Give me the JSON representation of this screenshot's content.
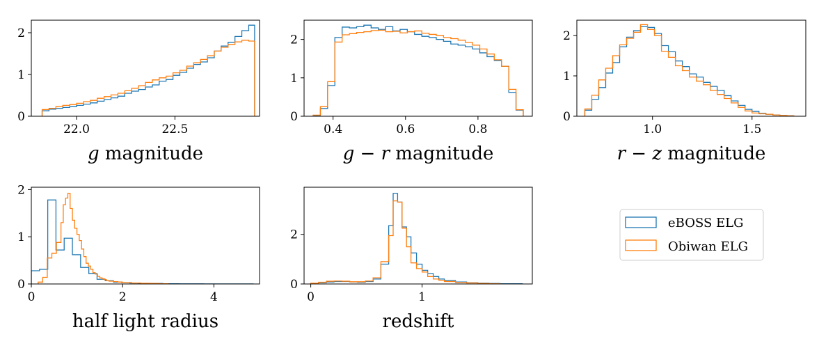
{
  "colors": {
    "eboss": "#1f77b4",
    "obiwan": "#ff7f0e"
  },
  "legend": {
    "entries": [
      "eBOSS ELG",
      "Obiwan ELG"
    ]
  },
  "chart_data": [
    {
      "id": "g-mag",
      "type": "step-histogram",
      "xlabel_parts": [
        {
          "text": "g",
          "italic": true
        },
        {
          "text": " magnitude",
          "italic": false
        }
      ],
      "xlim": [
        21.77,
        22.93
      ],
      "ylim": [
        0,
        2.3
      ],
      "xticks": [
        22.0,
        22.5
      ],
      "xtick_labels": [
        "22.0",
        "22.5"
      ],
      "yticks": [
        0,
        1,
        2
      ],
      "ytick_labels": [
        "0",
        "1",
        "2"
      ],
      "series": [
        {
          "name": "eBOSS ELG",
          "edges": [
            21.825,
            21.86,
            21.895,
            21.93,
            21.965,
            22.0,
            22.035,
            22.07,
            22.105,
            22.14,
            22.175,
            22.21,
            22.245,
            22.28,
            22.315,
            22.35,
            22.385,
            22.42,
            22.455,
            22.49,
            22.525,
            22.56,
            22.595,
            22.63,
            22.665,
            22.7,
            22.735,
            22.77,
            22.805,
            22.84,
            22.875,
            22.905
          ],
          "values": [
            0.13,
            0.17,
            0.19,
            0.21,
            0.23,
            0.26,
            0.29,
            0.32,
            0.36,
            0.4,
            0.44,
            0.48,
            0.55,
            0.6,
            0.64,
            0.7,
            0.75,
            0.84,
            0.88,
            0.98,
            1.05,
            1.15,
            1.24,
            1.3,
            1.4,
            1.56,
            1.68,
            1.77,
            1.91,
            2.05,
            2.18
          ],
          "drop": 0
        },
        {
          "name": "Obiwan ELG",
          "edges": [
            21.825,
            21.86,
            21.895,
            21.93,
            21.965,
            22.0,
            22.035,
            22.07,
            22.105,
            22.14,
            22.175,
            22.21,
            22.245,
            22.28,
            22.315,
            22.35,
            22.385,
            22.42,
            22.455,
            22.49,
            22.525,
            22.56,
            22.595,
            22.63,
            22.665,
            22.7,
            22.735,
            22.77,
            22.805,
            22.84,
            22.875,
            22.905
          ],
          "values": [
            0.16,
            0.19,
            0.23,
            0.26,
            0.28,
            0.31,
            0.35,
            0.38,
            0.43,
            0.47,
            0.51,
            0.55,
            0.61,
            0.67,
            0.73,
            0.81,
            0.87,
            0.92,
            0.96,
            1.04,
            1.1,
            1.2,
            1.28,
            1.36,
            1.45,
            1.56,
            1.65,
            1.72,
            1.78,
            1.82,
            1.8
          ],
          "drop": 0
        }
      ]
    },
    {
      "id": "g-r",
      "type": "step-histogram",
      "xlabel_parts": [
        {
          "text": "g",
          "italic": true
        },
        {
          "text": " − ",
          "italic": false
        },
        {
          "text": "r",
          "italic": true
        },
        {
          "text": " magnitude",
          "italic": false
        }
      ],
      "xlim": [
        0.32,
        0.95
      ],
      "ylim": [
        0,
        2.5
      ],
      "xticks": [
        0.4,
        0.6,
        0.8
      ],
      "xtick_labels": [
        "0.4",
        "0.6",
        "0.8"
      ],
      "yticks": [
        0,
        1,
        2
      ],
      "ytick_labels": [
        "0",
        "1",
        "2"
      ],
      "series": [
        {
          "name": "eBOSS ELG",
          "edges": [
            0.345,
            0.365,
            0.385,
            0.405,
            0.425,
            0.445,
            0.465,
            0.485,
            0.505,
            0.525,
            0.545,
            0.565,
            0.585,
            0.605,
            0.625,
            0.645,
            0.665,
            0.685,
            0.705,
            0.725,
            0.745,
            0.765,
            0.785,
            0.805,
            0.825,
            0.845,
            0.865,
            0.885,
            0.905,
            0.925
          ],
          "values": [
            0.02,
            0.2,
            0.8,
            2.05,
            2.32,
            2.3,
            2.33,
            2.37,
            2.3,
            2.26,
            2.33,
            2.22,
            2.26,
            2.2,
            2.13,
            2.08,
            2.05,
            2.0,
            1.95,
            1.88,
            1.85,
            1.81,
            1.75,
            1.65,
            1.55,
            1.45,
            1.3,
            0.62,
            0.16
          ],
          "drop": 0
        },
        {
          "name": "Obiwan ELG",
          "edges": [
            0.345,
            0.365,
            0.385,
            0.405,
            0.425,
            0.445,
            0.465,
            0.485,
            0.505,
            0.525,
            0.545,
            0.565,
            0.585,
            0.605,
            0.625,
            0.645,
            0.665,
            0.685,
            0.705,
            0.725,
            0.745,
            0.765,
            0.785,
            0.805,
            0.825,
            0.845,
            0.865,
            0.885,
            0.905,
            0.925
          ],
          "values": [
            0.03,
            0.25,
            0.9,
            1.93,
            2.12,
            2.15,
            2.18,
            2.2,
            2.23,
            2.24,
            2.2,
            2.21,
            2.17,
            2.2,
            2.22,
            2.16,
            2.13,
            2.1,
            2.05,
            2.02,
            1.98,
            1.92,
            1.85,
            1.75,
            1.62,
            1.47,
            1.3,
            0.7,
            0.17
          ],
          "drop": 0
        }
      ]
    },
    {
      "id": "r-z",
      "type": "step-histogram",
      "xlabel_parts": [
        {
          "text": "r",
          "italic": true
        },
        {
          "text": " − ",
          "italic": false
        },
        {
          "text": "z",
          "italic": true
        },
        {
          "text": " magnitude",
          "italic": false
        }
      ],
      "xlim": [
        0.62,
        1.77
      ],
      "ylim": [
        0,
        2.38
      ],
      "xticks": [
        1.0,
        1.5
      ],
      "xtick_labels": [
        "1.0",
        "1.5"
      ],
      "yticks": [
        0,
        1,
        2
      ],
      "ytick_labels": [
        "0",
        "1",
        "2"
      ],
      "series": [
        {
          "name": "eBOSS ELG",
          "edges": [
            0.66,
            0.695,
            0.73,
            0.765,
            0.8,
            0.835,
            0.87,
            0.905,
            0.94,
            0.975,
            1.01,
            1.045,
            1.08,
            1.115,
            1.15,
            1.185,
            1.22,
            1.255,
            1.29,
            1.325,
            1.36,
            1.395,
            1.43,
            1.465,
            1.5,
            1.535,
            1.57,
            1.605,
            1.64,
            1.675,
            1.71
          ],
          "values": [
            0.15,
            0.42,
            0.71,
            1.07,
            1.33,
            1.72,
            1.96,
            2.12,
            2.22,
            2.2,
            2.05,
            1.75,
            1.6,
            1.37,
            1.23,
            1.05,
            0.97,
            0.84,
            0.74,
            0.64,
            0.51,
            0.38,
            0.27,
            0.17,
            0.12,
            0.07,
            0.05,
            0.03,
            0.02,
            0.01
          ],
          "drop": 0
        },
        {
          "name": "Obiwan ELG",
          "edges": [
            0.66,
            0.695,
            0.73,
            0.765,
            0.8,
            0.835,
            0.87,
            0.905,
            0.94,
            0.975,
            1.01,
            1.045,
            1.08,
            1.115,
            1.15,
            1.185,
            1.22,
            1.255,
            1.29,
            1.325,
            1.36,
            1.395,
            1.43,
            1.465,
            1.5,
            1.535,
            1.57,
            1.605,
            1.64,
            1.675,
            1.71
          ],
          "values": [
            0.18,
            0.52,
            0.9,
            1.19,
            1.5,
            1.77,
            1.93,
            2.08,
            2.27,
            2.15,
            2.0,
            1.61,
            1.46,
            1.25,
            1.13,
            0.97,
            0.87,
            0.78,
            0.64,
            0.54,
            0.44,
            0.33,
            0.22,
            0.13,
            0.08,
            0.06,
            0.05,
            0.03,
            0.02,
            0.01
          ],
          "drop": 0
        }
      ]
    },
    {
      "id": "half-light",
      "type": "step-histogram",
      "xlabel_parts": [
        {
          "text": "half light radius",
          "italic": false
        }
      ],
      "xlim": [
        0,
        5.0
      ],
      "ylim": [
        0,
        2.05
      ],
      "xticks": [
        0,
        2,
        4
      ],
      "xtick_labels": [
        "0",
        "2",
        "4"
      ],
      "yticks": [
        0,
        1,
        2
      ],
      "ytick_labels": [
        "0",
        "1",
        "2"
      ],
      "series": [
        {
          "name": "eBOSS ELG",
          "edges": [
            0,
            0.18,
            0.36,
            0.54,
            0.72,
            0.9,
            1.08,
            1.26,
            1.44,
            1.62,
            1.8,
            1.98,
            2.16,
            2.34,
            2.52,
            2.7,
            2.88,
            3.06,
            3.24,
            3.42,
            3.6,
            3.78,
            3.96,
            4.14,
            4.32,
            4.5,
            4.68,
            4.86
          ],
          "values": [
            0.28,
            0.31,
            1.78,
            0.72,
            0.97,
            0.62,
            0.35,
            0.22,
            0.1,
            0.07,
            0.04,
            0.03,
            0.02,
            0.01,
            0.01,
            0.01,
            0.005,
            0.005,
            0.004,
            0.003,
            0.003,
            0.002,
            0.002,
            0.002,
            0.001,
            0.001,
            0.001
          ],
          "drop": 0
        },
        {
          "name": "Obiwan ELG",
          "edges": [
            0.15,
            0.25,
            0.35,
            0.45,
            0.55,
            0.65,
            0.7,
            0.75,
            0.8,
            0.85,
            0.9,
            0.95,
            1.0,
            1.05,
            1.1,
            1.15,
            1.2,
            1.25,
            1.3,
            1.35,
            1.4,
            1.45,
            1.5,
            1.55,
            1.6,
            1.65,
            1.7,
            1.8,
            1.9,
            2.0,
            2.2,
            2.4,
            2.6,
            2.8,
            3.0
          ],
          "values": [
            0.04,
            0.14,
            0.55,
            0.65,
            0.88,
            1.3,
            1.68,
            1.82,
            1.92,
            1.6,
            1.35,
            1.18,
            1.05,
            0.92,
            0.74,
            0.58,
            0.44,
            0.38,
            0.31,
            0.24,
            0.21,
            0.16,
            0.13,
            0.11,
            0.09,
            0.07,
            0.06,
            0.05,
            0.04,
            0.03,
            0.02,
            0.015,
            0.01,
            0.005
          ],
          "drop": 0
        }
      ]
    },
    {
      "id": "redshift",
      "type": "step-histogram",
      "xlabel_parts": [
        {
          "text": "redshift",
          "italic": false
        }
      ],
      "xlim": [
        -0.06,
        1.99
      ],
      "ylim": [
        0,
        3.9
      ],
      "xticks": [
        0,
        1
      ],
      "xtick_labels": [
        "0",
        "1"
      ],
      "yticks": [
        0,
        2
      ],
      "ytick_labels": [
        "0",
        "2"
      ],
      "series": [
        {
          "name": "eBOSS ELG",
          "edges": [
            0,
            0.07,
            0.14,
            0.21,
            0.28,
            0.35,
            0.42,
            0.49,
            0.56,
            0.63,
            0.7,
            0.74,
            0.78,
            0.82,
            0.86,
            0.9,
            0.95,
            1.0,
            1.05,
            1.1,
            1.15,
            1.2,
            1.3,
            1.4,
            1.5,
            1.6,
            1.7,
            1.8,
            1.9
          ],
          "values": [
            0.02,
            0.05,
            0.08,
            0.1,
            0.1,
            0.08,
            0.07,
            0.1,
            0.2,
            0.8,
            2.35,
            3.65,
            3.3,
            2.3,
            1.9,
            1.25,
            0.8,
            0.55,
            0.42,
            0.3,
            0.2,
            0.14,
            0.08,
            0.05,
            0.03,
            0.02,
            0.01,
            0.01
          ],
          "drop": 0
        },
        {
          "name": "Obiwan ELG",
          "edges": [
            0,
            0.07,
            0.14,
            0.21,
            0.28,
            0.35,
            0.42,
            0.49,
            0.56,
            0.63,
            0.7,
            0.74,
            0.78,
            0.82,
            0.86,
            0.9,
            0.95,
            1.0,
            1.05,
            1.1,
            1.15,
            1.2,
            1.3,
            1.4,
            1.5,
            1.6,
            1.7
          ],
          "values": [
            0.03,
            0.07,
            0.11,
            0.12,
            0.11,
            0.09,
            0.09,
            0.12,
            0.25,
            0.9,
            1.95,
            3.35,
            3.3,
            2.25,
            1.5,
            0.85,
            0.62,
            0.48,
            0.3,
            0.2,
            0.15,
            0.1,
            0.06,
            0.04,
            0.02,
            0.01
          ],
          "drop": 0
        }
      ]
    }
  ]
}
